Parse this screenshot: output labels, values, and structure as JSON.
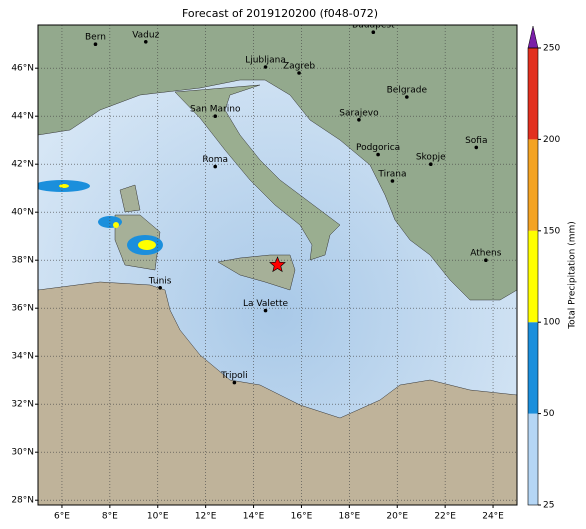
{
  "title": "Forecast of 2019120200 (f048-072)",
  "map": {
    "xlim": [
      5,
      25
    ],
    "ylim": [
      27.8,
      47.8
    ],
    "xticks": [
      {
        "value": 6,
        "label": "6°E"
      },
      {
        "value": 8,
        "label": "8°E"
      },
      {
        "value": 10,
        "label": "10°E"
      },
      {
        "value": 12,
        "label": "12°E"
      },
      {
        "value": 14,
        "label": "14°E"
      },
      {
        "value": 16,
        "label": "16°E"
      },
      {
        "value": 18,
        "label": "18°E"
      },
      {
        "value": 20,
        "label": "20°E"
      },
      {
        "value": 22,
        "label": "22°E"
      },
      {
        "value": 24,
        "label": "24°E"
      }
    ],
    "yticks": [
      {
        "value": 28,
        "label": "28°N"
      },
      {
        "value": 30,
        "label": "30°N"
      },
      {
        "value": 32,
        "label": "32°N"
      },
      {
        "value": 34,
        "label": "34°N"
      },
      {
        "value": 36,
        "label": "36°N"
      },
      {
        "value": 38,
        "label": "38°N"
      },
      {
        "value": 40,
        "label": "40°N"
      },
      {
        "value": 42,
        "label": "42°N"
      },
      {
        "value": 44,
        "label": "44°N"
      },
      {
        "value": 46,
        "label": "46°N"
      }
    ],
    "grid": true,
    "cities": [
      {
        "name": "Bern",
        "lon": 7.4,
        "lat": 47.0
      },
      {
        "name": "Vaduz",
        "lon": 9.5,
        "lat": 47.1
      },
      {
        "name": "Budapest",
        "lon": 19.0,
        "lat": 47.5
      },
      {
        "name": "Ljubljana",
        "lon": 14.5,
        "lat": 46.05
      },
      {
        "name": "Zagreb",
        "lon": 15.9,
        "lat": 45.8
      },
      {
        "name": "San Marino",
        "lon": 12.4,
        "lat": 44.0
      },
      {
        "name": "Belgrade",
        "lon": 20.4,
        "lat": 44.8
      },
      {
        "name": "Sarajevo",
        "lon": 18.4,
        "lat": 43.85
      },
      {
        "name": "Sofia",
        "lon": 23.3,
        "lat": 42.7
      },
      {
        "name": "Podgorica",
        "lon": 19.2,
        "lat": 42.4
      },
      {
        "name": "Skopje",
        "lon": 21.4,
        "lat": 42.0
      },
      {
        "name": "Roma",
        "lon": 12.4,
        "lat": 41.9
      },
      {
        "name": "Tirana",
        "lon": 19.8,
        "lat": 41.3
      },
      {
        "name": "Athens",
        "lon": 23.7,
        "lat": 38.0
      },
      {
        "name": "Tunis",
        "lon": 10.1,
        "lat": 36.85
      },
      {
        "name": "La Valette",
        "lon": 14.5,
        "lat": 35.9
      },
      {
        "name": "Tripoli",
        "lon": 13.2,
        "lat": 32.9
      }
    ],
    "marker": {
      "lon": 15.0,
      "lat": 37.8,
      "color": "#ff0000"
    }
  },
  "colorbar": {
    "label": "Total Precipitation (mm)",
    "levels": [
      25,
      50,
      100,
      150,
      200,
      250
    ],
    "colors": [
      "#b5d6f5",
      "#1b8fdc",
      "#ffff00",
      "#f4a322",
      "#e2301f"
    ],
    "extend_color": "#7a1fa8"
  }
}
